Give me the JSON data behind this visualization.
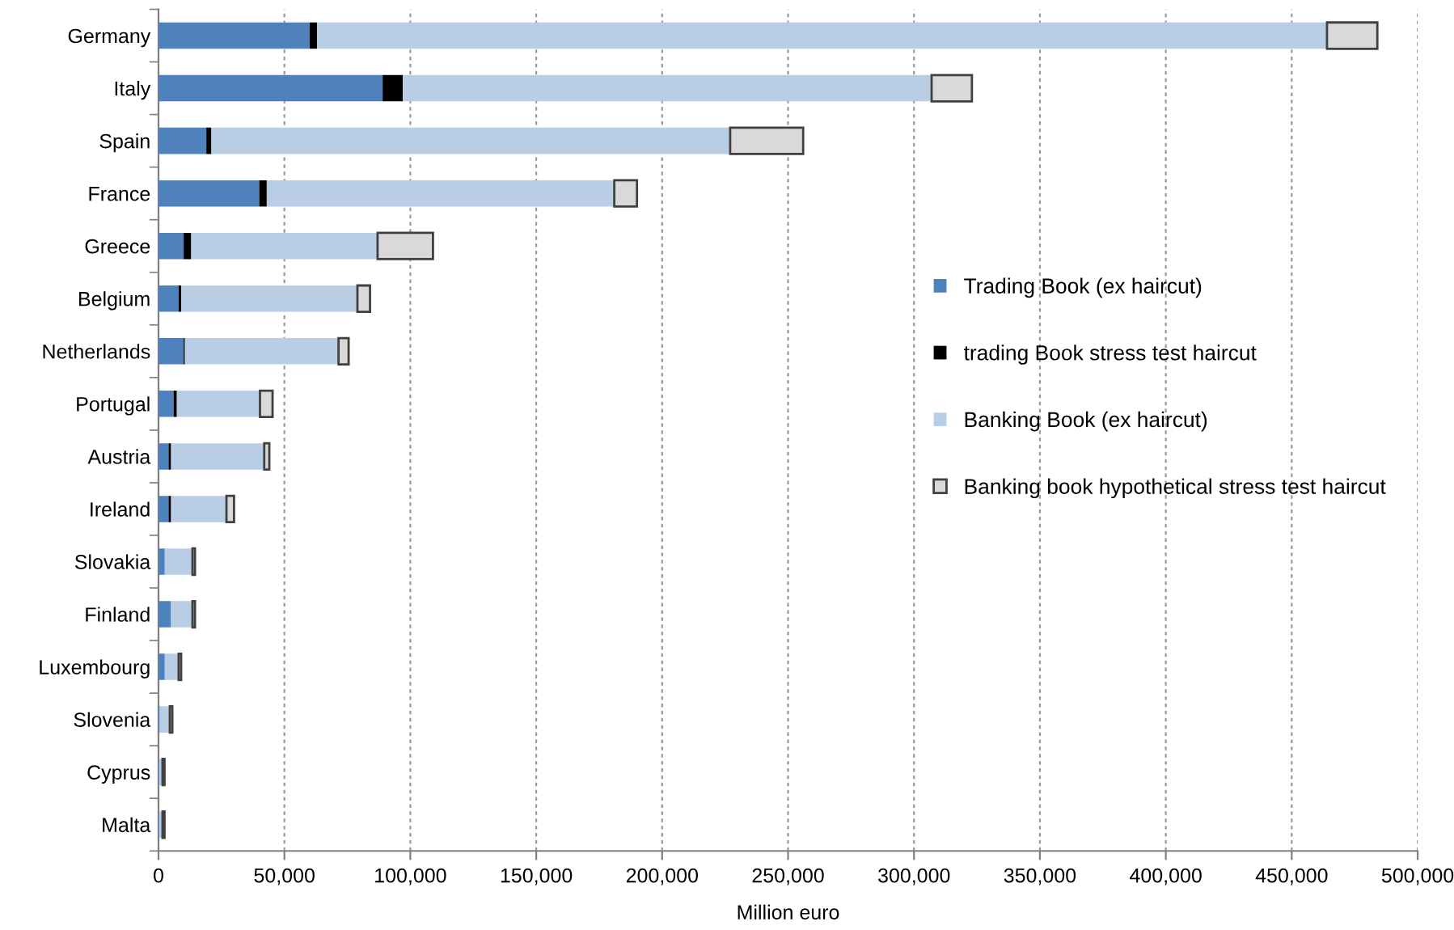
{
  "chart_data": {
    "type": "bar",
    "orientation": "horizontal",
    "stacked": true,
    "xlabel": "Million euro",
    "categories": [
      "Germany",
      "Italy",
      "Spain",
      "France",
      "Greece",
      "Belgium",
      "Netherlands",
      "Portugal",
      "Austria",
      "Ireland",
      "Slovakia",
      "Finland",
      "Luxembourg",
      "Slovenia",
      "Cyprus",
      "Malta"
    ],
    "series": [
      {
        "name": "Trading Book (ex haircut)",
        "color": "#4f81bd",
        "values": [
          60000,
          89000,
          19000,
          40000,
          10000,
          8000,
          10000,
          6000,
          4000,
          4000,
          2500,
          5000,
          2500,
          500,
          300,
          300
        ]
      },
      {
        "name": "trading Book stress test haircut",
        "color": "#000000",
        "values": [
          3000,
          8000,
          2000,
          3000,
          3000,
          1000,
          500,
          1300,
          1000,
          1000,
          0,
          0,
          0,
          0,
          0,
          0
        ]
      },
      {
        "name": "Banking Book (ex haircut)",
        "color": "#b9cde5",
        "values": [
          401000,
          210000,
          206000,
          138000,
          74000,
          70000,
          61000,
          33000,
          37000,
          22000,
          11000,
          8500,
          5500,
          4000,
          1300,
          1300
        ]
      },
      {
        "name": "Banking book hypothetical stress test haircut",
        "color": "#d9d9d9",
        "values": [
          20000,
          16000,
          29000,
          9000,
          22000,
          5000,
          4000,
          5000,
          2000,
          3000,
          1000,
          1000,
          1000,
          1000,
          800,
          800
        ]
      }
    ],
    "xlim": [
      0,
      500000
    ],
    "xticks": [
      {
        "value": 0,
        "label": "0"
      },
      {
        "value": 50000,
        "label": "50,000"
      },
      {
        "value": 100000,
        "label": "100,000"
      },
      {
        "value": 150000,
        "label": "150,000"
      },
      {
        "value": 200000,
        "label": "200,000"
      },
      {
        "value": 250000,
        "label": "250,000"
      },
      {
        "value": 300000,
        "label": "300,000"
      },
      {
        "value": 350000,
        "label": "350,000"
      },
      {
        "value": 400000,
        "label": "400,000"
      },
      {
        "value": 450000,
        "label": "450,000"
      },
      {
        "value": 500000,
        "label": "500,000"
      }
    ],
    "grid": "x",
    "legend": "right"
  }
}
